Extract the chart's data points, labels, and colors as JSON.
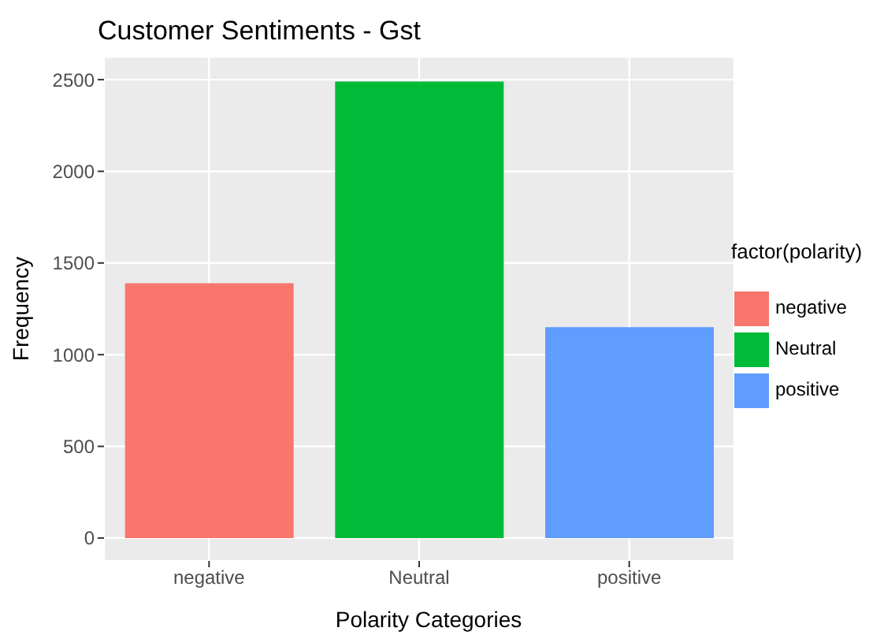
{
  "chart_data": {
    "type": "bar",
    "title": "Customer Sentiments - Gst",
    "xlabel": "Polarity Categories",
    "ylabel": "Frequency",
    "legend_title": "factor(polarity)",
    "categories": [
      "negative",
      "Neutral",
      "positive"
    ],
    "series": [
      {
        "name": "negative",
        "color": "#f8766d",
        "values": [
          1390,
          null,
          null
        ]
      },
      {
        "name": "Neutral",
        "color": "#00ba38",
        "values": [
          null,
          2490,
          null
        ]
      },
      {
        "name": "positive",
        "color": "#619cff",
        "values": [
          null,
          null,
          1150
        ]
      }
    ],
    "stacked": true,
    "ylim": [
      -125,
      2625
    ],
    "yticks": [
      0,
      500,
      1000,
      1500,
      2000,
      2500
    ],
    "grid": true,
    "legend": "right"
  }
}
